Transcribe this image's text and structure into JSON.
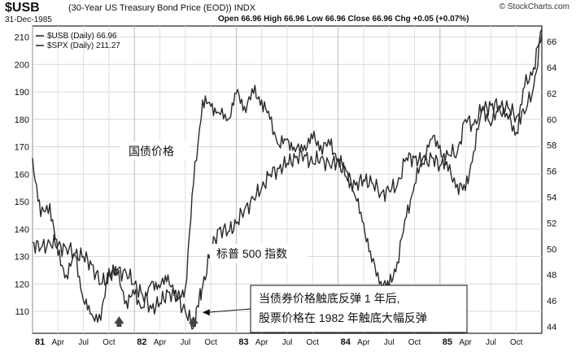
{
  "header": {
    "ticker": "$USB",
    "subtitle": "(30-Year US Treasury Bond Price (EOD)) INDX",
    "brand": "© StockCharts.com",
    "date": "31-Dec-1985",
    "ohlc": "Open 66.96  High 66.96  Low 66.96  Close 66.96  Chg +0.05 (+0.07%)"
  },
  "legend": [
    "$USB (Daily) 66.96",
    "$SPX (Daily) 211.27"
  ],
  "annotations": {
    "bond": "国债价格",
    "spx": "标普 500 指数",
    "callout_line1": "当债券价格触底反弹 1 年后,",
    "callout_line2": "股票价格在 1982 年触底大幅反弹"
  },
  "chart_data": {
    "type": "line",
    "title": "$USB (30-Year US Treasury Bond Price (EOD)) INDX",
    "x_range": [
      "1981-01",
      "1985-12"
    ],
    "x_tick_labels": [
      "81",
      "Apr",
      "Jul",
      "Oct",
      "82",
      "Apr",
      "Jul",
      "Oct",
      "83",
      "Apr",
      "Jul",
      "Oct",
      "84",
      "Apr",
      "Jul",
      "Oct",
      "85",
      "Apr",
      "Jul",
      "Oct"
    ],
    "left_axis": {
      "ticks": [
        110,
        120,
        130,
        140,
        150,
        160,
        170,
        180,
        190,
        200,
        210
      ],
      "range": [
        102,
        214
      ]
    },
    "right_axis": {
      "ticks": [
        44,
        46,
        48,
        50,
        52,
        54,
        56,
        58,
        60,
        62,
        64,
        66
      ],
      "range": [
        43.5,
        67.2
      ]
    },
    "series": [
      {
        "name": "$SPX (Daily) 211.27",
        "axis": "left",
        "x": [
          1981.0,
          1981.08,
          1981.17,
          1981.25,
          1981.33,
          1981.42,
          1981.5,
          1981.58,
          1981.67,
          1981.75,
          1981.83,
          1981.92,
          1982.0,
          1982.08,
          1982.17,
          1982.25,
          1982.33,
          1982.42,
          1982.5,
          1982.58,
          1982.62,
          1982.67,
          1982.75,
          1982.83,
          1982.92,
          1983.0,
          1983.08,
          1983.17,
          1983.25,
          1983.33,
          1983.42,
          1983.5,
          1983.58,
          1983.67,
          1983.75,
          1983.83,
          1983.92,
          1984.0,
          1984.08,
          1984.17,
          1984.25,
          1984.33,
          1984.42,
          1984.5,
          1984.58,
          1984.67,
          1984.75,
          1984.83,
          1984.92,
          1985.0,
          1985.08,
          1985.17,
          1985.25,
          1985.33,
          1985.42,
          1985.5,
          1985.58,
          1985.67,
          1985.75,
          1985.83,
          1985.92,
          1986.0
        ],
        "values": [
          135,
          133,
          135,
          134,
          133,
          131,
          130,
          127,
          120,
          123,
          125,
          124,
          120,
          116,
          111,
          113,
          117,
          115,
          110,
          104,
          112,
          119,
          132,
          140,
          139,
          142,
          147,
          151,
          155,
          160,
          162,
          164,
          166,
          167,
          164,
          166,
          163,
          165,
          159,
          156,
          158,
          157,
          153,
          154,
          156,
          166,
          166,
          164,
          166,
          163,
          167,
          168,
          180,
          178,
          184,
          185,
          185,
          184,
          181,
          182,
          192,
          211
        ]
      },
      {
        "name": "$USB (Daily) 66.96",
        "axis": "right",
        "x": [
          1981.0,
          1981.08,
          1981.17,
          1981.25,
          1981.33,
          1981.42,
          1981.5,
          1981.58,
          1981.67,
          1981.75,
          1981.83,
          1981.92,
          1982.0,
          1982.08,
          1982.17,
          1982.25,
          1982.33,
          1982.42,
          1982.5,
          1982.58,
          1982.67,
          1982.75,
          1982.83,
          1982.92,
          1983.0,
          1983.08,
          1983.17,
          1983.25,
          1983.33,
          1983.42,
          1983.5,
          1983.58,
          1983.67,
          1983.75,
          1983.83,
          1983.92,
          1984.0,
          1984.08,
          1984.17,
          1984.25,
          1984.33,
          1984.42,
          1984.5,
          1984.58,
          1984.67,
          1984.75,
          1984.83,
          1984.92,
          1985.0,
          1985.08,
          1985.17,
          1985.25,
          1985.33,
          1985.42,
          1985.5,
          1985.58,
          1985.67,
          1985.75,
          1985.83,
          1985.92,
          1986.0
        ],
        "values": [
          57.0,
          52.5,
          53.5,
          49.5,
          48.0,
          49.5,
          46.0,
          45.0,
          44.5,
          48.5,
          48.0,
          46.0,
          46.5,
          45.5,
          47.5,
          47.0,
          48.0,
          46.0,
          47.0,
          55.0,
          61.5,
          61.0,
          60.5,
          60.0,
          62.0,
          61.0,
          62.0,
          61.5,
          60.0,
          58.0,
          58.5,
          57.5,
          58.0,
          58.5,
          58.0,
          58.0,
          57.0,
          56.0,
          54.0,
          52.0,
          49.0,
          47.5,
          47.0,
          49.0,
          52.5,
          55.0,
          57.0,
          58.5,
          58.0,
          56.0,
          55.0,
          54.5,
          57.5,
          61.0,
          59.5,
          61.0,
          60.0,
          59.0,
          62.5,
          64.0,
          66.96
        ]
      }
    ],
    "callout_arrow_targets": [
      {
        "series": "$SPX (Daily) 211.27",
        "x": 1982.62
      }
    ],
    "bottom_markers": [
      1981.85,
      1982.58
    ],
    "grid": true
  }
}
